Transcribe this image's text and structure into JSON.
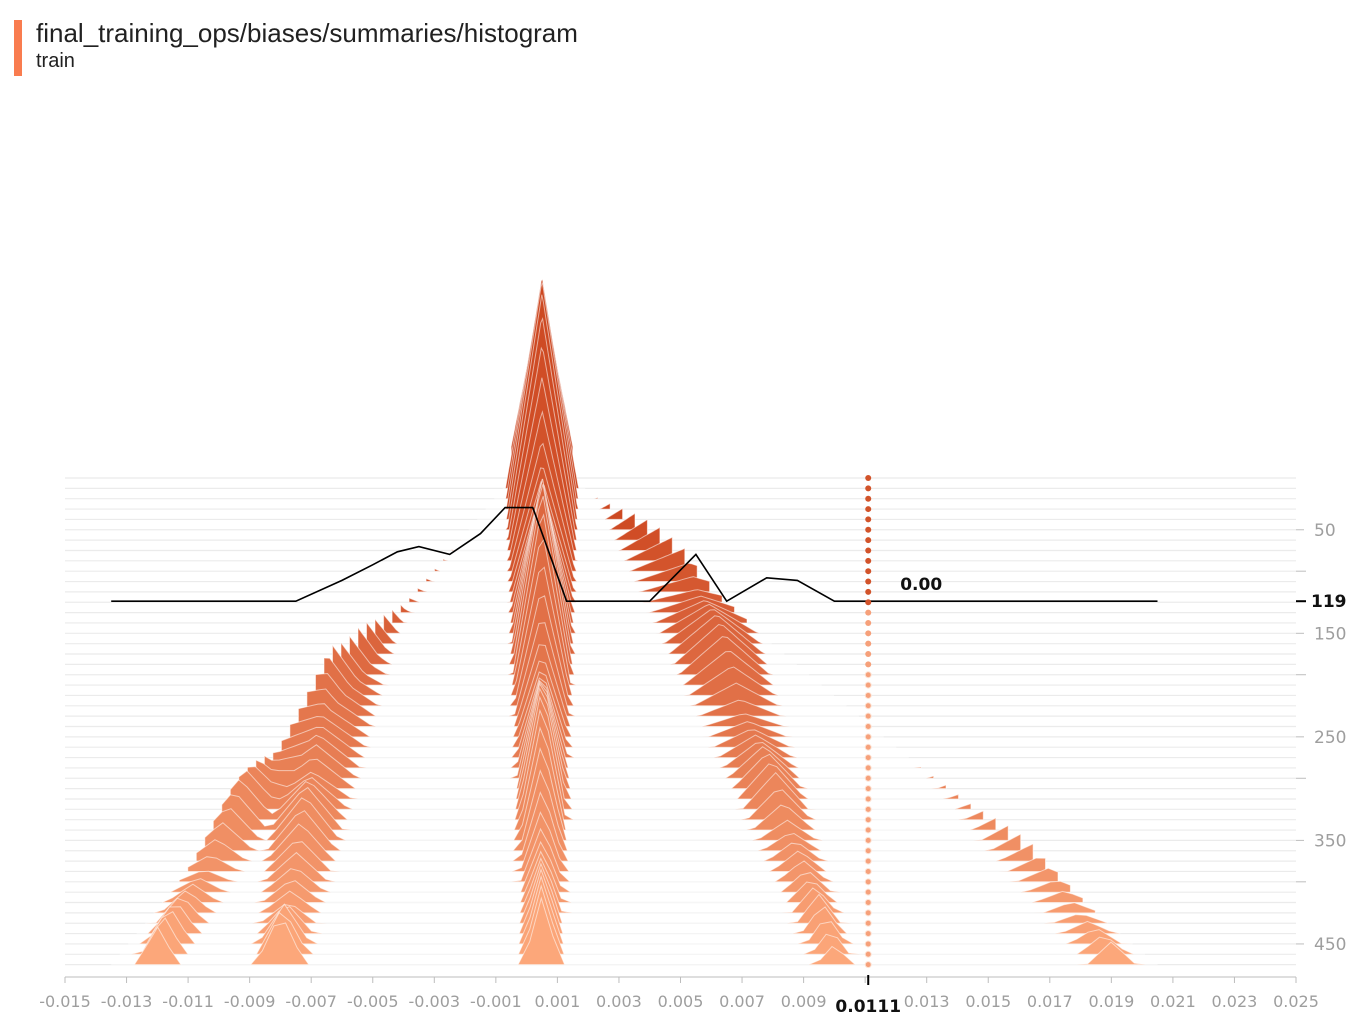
{
  "header": {
    "tag": "final_training_ops/biases/summaries/histogram",
    "run": "train",
    "run_color": "#f97c4f"
  },
  "chart_data": {
    "type": "histogram-offset",
    "x_ticks": [
      "-0.015",
      "-0.013",
      "-0.011",
      "-0.009",
      "-0.007",
      "-0.005",
      "-0.003",
      "-0.001",
      "0.001",
      "0.003",
      "0.005",
      "0.007",
      "0.009",
      "0.011",
      "0.013",
      "0.015",
      "0.017",
      "0.019",
      "0.021",
      "0.023",
      "0.025"
    ],
    "xlim": [
      -0.015,
      0.025
    ],
    "step_ticks": [
      "50",
      "150",
      "250",
      "350",
      "450"
    ],
    "step_range": [
      0,
      480
    ],
    "color_top": "#c9401a",
    "color_bottom": "#fca77a",
    "hover": {
      "step": "119",
      "x": "0.0111",
      "count": "0.00"
    },
    "hover_x_value": 0.0111,
    "hover_step_value": 119,
    "hover_series": [
      [
        -0.0135,
        0
      ],
      [
        -0.0075,
        0
      ],
      [
        -0.006,
        8
      ],
      [
        -0.005,
        14
      ],
      [
        -0.0042,
        19
      ],
      [
        -0.0035,
        21
      ],
      [
        -0.0025,
        18
      ],
      [
        -0.0015,
        26
      ],
      [
        -0.0007,
        36
      ],
      [
        0.0002,
        36
      ],
      [
        0.0013,
        0
      ],
      [
        0.004,
        0
      ],
      [
        0.0055,
        18
      ],
      [
        0.0065,
        0
      ],
      [
        0.0078,
        9
      ],
      [
        0.0088,
        8
      ],
      [
        0.01,
        0
      ],
      [
        0.0205,
        0
      ]
    ]
  }
}
